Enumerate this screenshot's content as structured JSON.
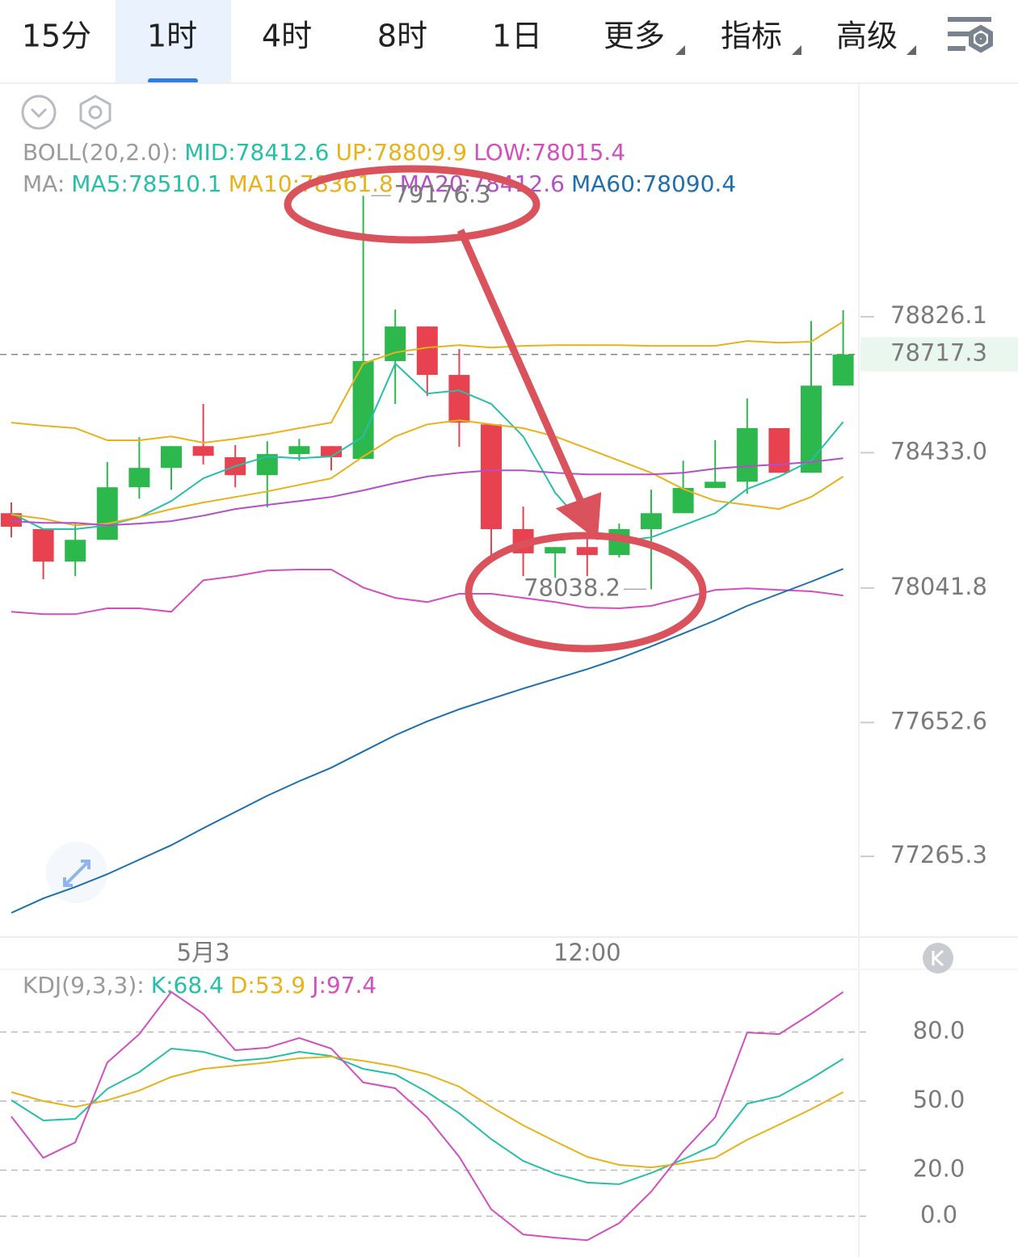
{
  "toolbar": {
    "tabs": [
      "15分",
      "1时",
      "4时",
      "8时",
      "1日",
      "更多",
      "指标",
      "高级"
    ],
    "active": 1
  },
  "chart_data": [
    {
      "type": "candlestick",
      "categories": [
        null,
        null,
        null,
        null,
        null,
        null,
        "5月3",
        null,
        null,
        null,
        null,
        null,
        null,
        null,
        null,
        null,
        null,
        null,
        "12:00",
        null,
        null,
        null,
        null,
        null,
        null,
        null,
        null
      ],
      "open": [
        78258,
        78212,
        78118,
        78181,
        78333,
        78389,
        78452,
        78420,
        78368,
        78429,
        78452,
        78415,
        78698,
        78798,
        78658,
        78515,
        78212,
        78142,
        78160,
        78137,
        78212,
        78258,
        78331,
        78349,
        78504,
        78375,
        78627
      ],
      "high": [
        78289,
        78212,
        78228,
        78406,
        78478,
        78452,
        78574,
        78455,
        78466,
        78473,
        78452,
        79176.3,
        78847,
        78798,
        78733,
        78515,
        78277,
        78160,
        78200,
        78228,
        78326,
        78410,
        78469,
        78590,
        78504,
        78814,
        78845
      ],
      "low": [
        78188,
        78067,
        78076,
        78181,
        78300,
        78326,
        78399,
        78333,
        78275,
        78410,
        78382,
        78415,
        78574,
        78597,
        78450,
        78137,
        78076,
        78071,
        78076,
        78130,
        78038.2,
        78258,
        78331,
        78314,
        78375,
        78375,
        78627
      ],
      "close": [
        78219,
        78118,
        78181,
        78333,
        78389,
        78452,
        78424,
        78368,
        78429,
        78452,
        78420,
        78698,
        78798,
        78658,
        78520,
        78212,
        78142,
        78160,
        78137,
        78212,
        78258,
        78331,
        78349,
        78504,
        78375,
        78627,
        78717.3
      ],
      "up_color": "#2db84d",
      "down_color": "#e8414f",
      "indicators": [
        {
          "label": "BOLL(20,2.0):",
          "series": [
            {
              "name": "MID:78412.6",
              "color": "#26bfa8"
            },
            {
              "name": "UP:78809.9",
              "color": "#e8b21a",
              "values": [
                78520,
                78511,
                78504,
                78469,
                78469,
                78480,
                78462,
                78473,
                78487,
                78504,
                78520,
                78691,
                78723,
                78737,
                78744,
                78737,
                78742,
                78744,
                78744,
                78744,
                78742,
                78742,
                78742,
                78756,
                78751,
                78754,
                78812
              ]
            },
            {
              "name": "LOW:78015.4",
              "color": "#d24fbf",
              "values": [
                77973,
                77966,
                77966,
                77983,
                77983,
                77973,
                78064,
                78076,
                78092,
                78095,
                78095,
                78043,
                78013,
                78001,
                78025,
                78025,
                78013,
                78001,
                77985,
                77983,
                77990,
                78013,
                78036,
                78041,
                78036,
                78032,
                78020
              ]
            }
          ]
        },
        {
          "label": "MA:",
          "series": [
            {
              "name": "MA5:78510.1",
              "color": "#26bfa8",
              "values": [
                78258,
                78212,
                78212,
                78223,
                78247,
                78293,
                78359,
                78394,
                78422,
                78417,
                78422,
                78480,
                78691,
                78604,
                78613,
                78574,
                78480,
                78317,
                78212,
                78177,
                78188,
                78223,
                78258,
                78328,
                78364,
                78410,
                78522
              ]
            },
            {
              "name": "MA10:78361.8",
              "color": "#e8b21a",
              "values": [
                78254,
                78242,
                78223,
                78228,
                78247,
                78270,
                78289,
                78305,
                78321,
                78340,
                78359,
                78422,
                78480,
                78515,
                78527,
                78515,
                78504,
                78480,
                78445,
                78410,
                78375,
                78328,
                78294,
                78282,
                78270,
                78305,
                78364
              ]
            },
            {
              "name": "MA20:78412.6",
              "color": "#b44fc8",
              "values": [
                78235,
                78230,
                78230,
                78223,
                78228,
                78235,
                78251,
                78270,
                78282,
                78293,
                78305,
                78324,
                78345,
                78364,
                78375,
                78382,
                78382,
                78375,
                78370,
                78370,
                78370,
                78375,
                78387,
                78394,
                78399,
                78406,
                78417
              ]
            },
            {
              "name": "MA60:78090.4",
              "color": "#1f6fae",
              "values": [
                77102,
                77144,
                77177,
                77214,
                77256,
                77298,
                77347,
                77394,
                77441,
                77483,
                77522,
                77569,
                77616,
                77656,
                77691,
                77721,
                77751,
                77779,
                77807,
                77838,
                77873,
                77910,
                77948,
                77990,
                78025,
                78060,
                78097
              ]
            }
          ]
        }
      ],
      "ylim": [
        77032,
        79497
      ],
      "yticks": [
        78826.1,
        {
          "value": 78433,
          "label": "78433.0"
        },
        78041.8,
        77652.6,
        77265.3
      ],
      "grid": false
    },
    {
      "type": "line",
      "title": "KDJ(9,3,3):",
      "series": [
        {
          "name": "K:68.4",
          "color": "#26bfa8",
          "values": [
            50.4,
            41.6,
            42.3,
            55.3,
            62.6,
            72.8,
            71.4,
            67.5,
            68.6,
            71.4,
            69.6,
            64.0,
            61.6,
            53.9,
            44.7,
            33.5,
            24.0,
            18.4,
            14.6,
            13.9,
            18.8,
            24.7,
            31.1,
            48.9,
            52.1,
            59.8,
            68.4
          ]
        },
        {
          "name": "D:53.9",
          "color": "#e8b21a",
          "values": [
            53.9,
            50,
            47.5,
            50.4,
            54.6,
            60.5,
            64.0,
            65.4,
            66.8,
            68.6,
            69.3,
            67.5,
            65.1,
            61.6,
            56.3,
            47.5,
            39.5,
            32.5,
            25.8,
            22.3,
            21.2,
            23.0,
            25.4,
            33.2,
            39.8,
            46.5,
            53.9
          ]
        },
        {
          "name": "J:97.4",
          "color": "#d24fbf",
          "values": [
            43.3,
            25.4,
            32.1,
            66.8,
            79.1,
            97.4,
            87.9,
            72.1,
            73.2,
            77.4,
            72.8,
            58.1,
            55.6,
            43.0,
            25.8,
            3.0,
            -7.9,
            -9.3,
            -10.4,
            -3.0,
            10.7,
            28.2,
            43.0,
            79.8,
            79.1,
            87.9,
            97.4
          ]
        }
      ],
      "ylim": [
        -17.7,
        107.2
      ],
      "yticks": [
        {
          "value": 80,
          "label": "80.0"
        },
        {
          "value": 50,
          "label": "50.0"
        },
        {
          "value": 20,
          "label": "20.0"
        },
        {
          "value": 0,
          "label": "0.0"
        }
      ],
      "grid": true
    }
  ]
}
